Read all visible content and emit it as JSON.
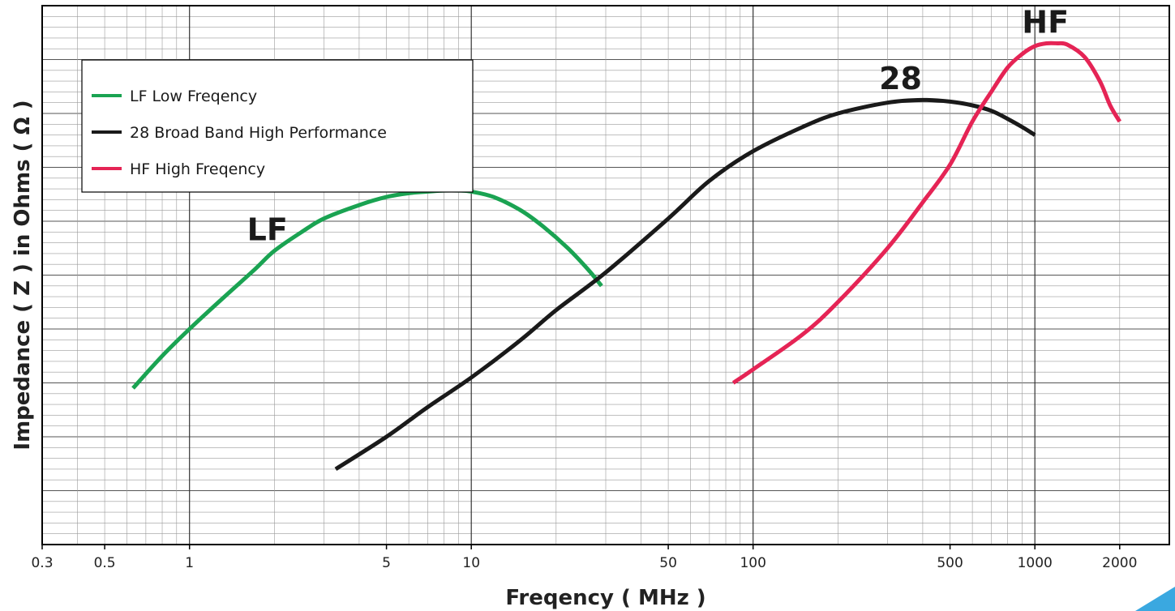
{
  "chart_data": {
    "type": "line",
    "title": "",
    "xlabel": "Freqency ( MHz )",
    "ylabel": "Impedance ( Z ) in Ohms ( Ω )",
    "x_scale": "log",
    "xlim": [
      0.3,
      3000
    ],
    "ylim": [
      0,
      10
    ],
    "y_tick_labels": "none",
    "grid": true,
    "legend_position": "top-left",
    "x_ticks": [
      {
        "value": 0.3,
        "label": "0.3"
      },
      {
        "value": 0.5,
        "label": "0.5"
      },
      {
        "value": 1,
        "label": "1"
      },
      {
        "value": 5,
        "label": "5"
      },
      {
        "value": 10,
        "label": "10"
      },
      {
        "value": 50,
        "label": "50"
      },
      {
        "value": 100,
        "label": "100"
      },
      {
        "value": 500,
        "label": "500"
      },
      {
        "value": 1000,
        "label": "1000"
      },
      {
        "value": 2000,
        "label": "2000"
      }
    ],
    "series": [
      {
        "name": "LF Low Freqency",
        "curve_label": "LF",
        "color": "#1aa352",
        "points": [
          [
            0.63,
            2.9
          ],
          [
            0.8,
            3.5
          ],
          [
            1.0,
            4.0
          ],
          [
            1.3,
            4.55
          ],
          [
            1.7,
            5.1
          ],
          [
            2.0,
            5.45
          ],
          [
            2.5,
            5.8
          ],
          [
            3.0,
            6.05
          ],
          [
            4.0,
            6.3
          ],
          [
            5.0,
            6.45
          ],
          [
            6.0,
            6.52
          ],
          [
            7.0,
            6.55
          ],
          [
            8.0,
            6.57
          ],
          [
            9.0,
            6.57
          ],
          [
            10.0,
            6.55
          ],
          [
            12.0,
            6.45
          ],
          [
            15.0,
            6.2
          ],
          [
            18.0,
            5.9
          ],
          [
            22.0,
            5.5
          ],
          [
            26.0,
            5.1
          ],
          [
            29.0,
            4.8
          ]
        ]
      },
      {
        "name": "28 Broad Band High Performance",
        "curve_label": "28",
        "color": "#1a1a1a",
        "points": [
          [
            3.3,
            1.4
          ],
          [
            5.0,
            2.0
          ],
          [
            7.0,
            2.55
          ],
          [
            10.0,
            3.1
          ],
          [
            15.0,
            3.8
          ],
          [
            20.0,
            4.35
          ],
          [
            30.0,
            5.05
          ],
          [
            50.0,
            6.05
          ],
          [
            70.0,
            6.75
          ],
          [
            100.0,
            7.3
          ],
          [
            150.0,
            7.75
          ],
          [
            200.0,
            8.0
          ],
          [
            300.0,
            8.2
          ],
          [
            400.0,
            8.25
          ],
          [
            500.0,
            8.22
          ],
          [
            600.0,
            8.15
          ],
          [
            700.0,
            8.05
          ],
          [
            800.0,
            7.9
          ],
          [
            900.0,
            7.75
          ],
          [
            1000.0,
            7.6
          ]
        ]
      },
      {
        "name": "HF High Freqency",
        "curve_label": "HF",
        "color": "#e52455",
        "points": [
          [
            85.0,
            3.0
          ],
          [
            100.0,
            3.25
          ],
          [
            150.0,
            3.9
          ],
          [
            200.0,
            4.5
          ],
          [
            300.0,
            5.5
          ],
          [
            400.0,
            6.35
          ],
          [
            500.0,
            7.05
          ],
          [
            600.0,
            7.85
          ],
          [
            700.0,
            8.4
          ],
          [
            800.0,
            8.85
          ],
          [
            900.0,
            9.1
          ],
          [
            1000.0,
            9.25
          ],
          [
            1100.0,
            9.3
          ],
          [
            1200.0,
            9.3
          ],
          [
            1300.0,
            9.28
          ],
          [
            1500.0,
            9.05
          ],
          [
            1700.0,
            8.6
          ],
          [
            1850.0,
            8.15
          ],
          [
            2000.0,
            7.85
          ]
        ]
      }
    ]
  }
}
